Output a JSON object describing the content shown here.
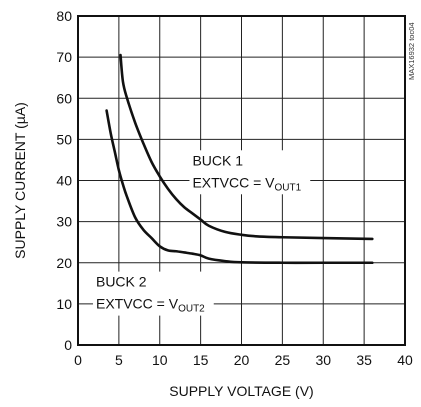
{
  "chart_data": {
    "type": "line",
    "title": "",
    "xlabel": "SUPPLY VOLTAGE (V)",
    "ylabel": "SUPPLY CURRENT (µA)",
    "xlim": [
      0,
      40
    ],
    "ylim": [
      0,
      80
    ],
    "xticks": [
      "0",
      "5",
      "10",
      "15",
      "20",
      "25",
      "30",
      "35",
      "40"
    ],
    "yticks": [
      "0",
      "10",
      "20",
      "30",
      "40",
      "50",
      "60",
      "70",
      "80"
    ],
    "grid": true,
    "legend": "none",
    "series": [
      {
        "name": "BUCK 1 EXTVCC = VOUT1",
        "x": [
          5.2,
          5.5,
          6,
          7,
          8,
          9,
          10,
          11,
          12,
          13,
          14,
          15,
          16,
          18,
          20,
          22,
          25,
          30,
          36
        ],
        "y": [
          70.5,
          64,
          60,
          54,
          49,
          44.5,
          41,
          38,
          35.5,
          33.5,
          32,
          30.5,
          29,
          27.5,
          26.8,
          26.4,
          26.2,
          26.0,
          25.8
        ]
      },
      {
        "name": "BUCK 2 EXTVCC = VOUT2",
        "x": [
          3.5,
          4,
          4.5,
          5,
          5.5,
          6,
          7,
          8,
          9,
          10,
          11,
          12,
          13,
          14,
          15,
          16,
          18,
          20,
          25,
          30,
          36
        ],
        "y": [
          57,
          51.5,
          47,
          42.5,
          39,
          36,
          31,
          28,
          26,
          24,
          23,
          22.8,
          22.5,
          22.2,
          21.8,
          21,
          20.4,
          20.1,
          20.0,
          20.0,
          20.0
        ]
      }
    ],
    "annotations": [
      {
        "line1": "BUCK 1",
        "line2_main": "EXTVCC = V",
        "line2_sub": "OUT1"
      },
      {
        "line1": "BUCK 2",
        "line2_main": "EXTVCC = V",
        "line2_sub": "OUT2"
      }
    ],
    "figure_id": "MAX16932 toc04"
  }
}
